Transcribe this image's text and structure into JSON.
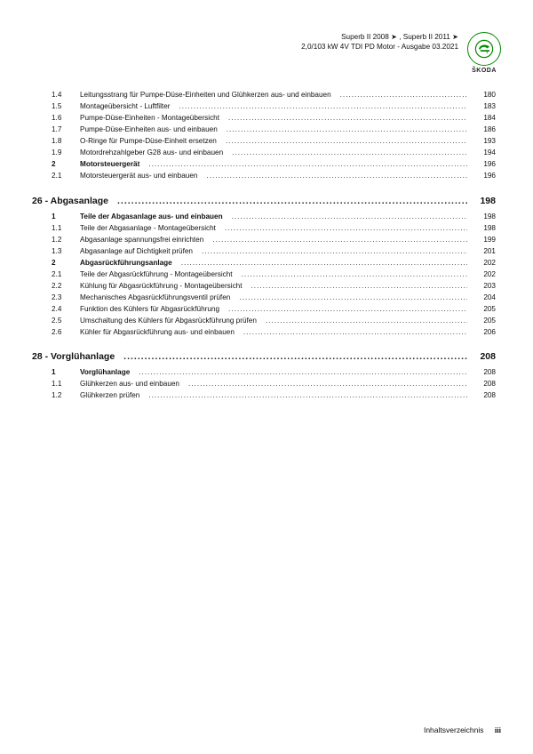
{
  "header": {
    "line1": "Superb II 2008 ➤ , Superb II 2011 ➤",
    "line2": "2,0/103 kW 4V TDI PD Motor - Ausgabe 03.2021",
    "brand": "ŠKODA"
  },
  "footer": {
    "label": "Inhaltsverzeichnis",
    "page": "iii"
  },
  "groups": [
    {
      "head": null,
      "rows": [
        {
          "n": "1.4",
          "t": "Leitungsstrang für Pumpe-Düse-Einheiten und Glühkerzen aus- und einbauen",
          "p": "180",
          "b": false
        },
        {
          "n": "1.5",
          "t": "Montageübersicht - Luftfilter",
          "p": "183",
          "b": false
        },
        {
          "n": "1.6",
          "t": "Pumpe-Düse-Einheiten - Montageübersicht",
          "p": "184",
          "b": false
        },
        {
          "n": "1.7",
          "t": "Pumpe-Düse-Einheiten aus- und einbauen",
          "p": "186",
          "b": false
        },
        {
          "n": "1.8",
          "t": "O-Ringe für Pumpe-Düse-Einheit ersetzen",
          "p": "193",
          "b": false
        },
        {
          "n": "1.9",
          "t": "Motordrehzahlgeber G28 aus- und einbauen",
          "p": "194",
          "b": false
        },
        {
          "n": "2",
          "t": "Motorsteuergerät",
          "p": "196",
          "b": true
        },
        {
          "n": "2.1",
          "t": "Motorsteuergerät aus- und einbauen",
          "p": "196",
          "b": false
        }
      ]
    },
    {
      "head": {
        "title": "26 - Abgasanlage",
        "page": "198"
      },
      "rows": [
        {
          "n": "1",
          "t": "Teile der Abgasanlage aus- und einbauen",
          "p": "198",
          "b": true
        },
        {
          "n": "1.1",
          "t": "Teile der Abgasanlage - Montageübersicht",
          "p": "198",
          "b": false
        },
        {
          "n": "1.2",
          "t": "Abgasanlage spannungsfrei einrichten",
          "p": "199",
          "b": false
        },
        {
          "n": "1.3",
          "t": "Abgasanlage auf Dichtigkeit prüfen",
          "p": "201",
          "b": false
        },
        {
          "n": "2",
          "t": "Abgasrückführungsanlage",
          "p": "202",
          "b": true
        },
        {
          "n": "2.1",
          "t": "Teile der Abgasrückführung - Montageübersicht",
          "p": "202",
          "b": false
        },
        {
          "n": "2.2",
          "t": "Kühlung für Abgasrückführung - Montageübersicht",
          "p": "203",
          "b": false
        },
        {
          "n": "2.3",
          "t": "Mechanisches Abgasrückführungsventil prüfen",
          "p": "204",
          "b": false
        },
        {
          "n": "2.4",
          "t": "Funktion des Kühlers für Abgasrückführung",
          "p": "205",
          "b": false
        },
        {
          "n": "2.5",
          "t": "Umschaltung des Kühlers für Abgasrückführung prüfen",
          "p": "205",
          "b": false
        },
        {
          "n": "2.6",
          "t": "Kühler für Abgasrückführung aus- und einbauen",
          "p": "206",
          "b": false
        }
      ]
    },
    {
      "head": {
        "title": "28 - Vorglühanlage",
        "page": "208"
      },
      "rows": [
        {
          "n": "1",
          "t": "Vorglühanlage",
          "p": "208",
          "b": true
        },
        {
          "n": "1.1",
          "t": "Glühkerzen aus- und einbauen",
          "p": "208",
          "b": false
        },
        {
          "n": "1.2",
          "t": "Glühkerzen prüfen",
          "p": "208",
          "b": false
        }
      ]
    }
  ]
}
